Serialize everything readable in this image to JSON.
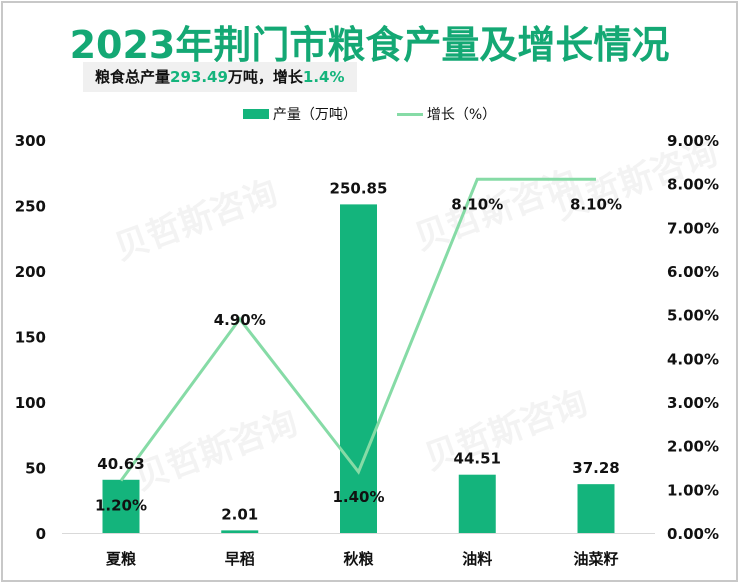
{
  "title": "2023年荆门市粮食产量及增长情况",
  "subtitle": {
    "prefix": "粮食总产量",
    "total": "293.49",
    "middle": "万吨，增长",
    "growth": "1.4%"
  },
  "legend": {
    "bar_label": "产量（万吨）",
    "line_label": "增长（%）"
  },
  "colors": {
    "bar": "#14b47c",
    "line": "#86dba6",
    "title": "#14a874",
    "highlight": "#14b47c"
  },
  "watermark": "贝哲斯咨询",
  "chart_data": {
    "type": "bar+line",
    "title": "2023年荆门市粮食产量及增长情况",
    "categories": [
      "夏粮",
      "早稻",
      "秋粮",
      "油料",
      "油菜籽"
    ],
    "series": [
      {
        "name": "产量（万吨）",
        "type": "bar",
        "axis": "left",
        "values": [
          40.63,
          2.01,
          250.85,
          44.51,
          37.28
        ],
        "labels": [
          "40.63",
          "2.01",
          "250.85",
          "44.51",
          "37.28"
        ]
      },
      {
        "name": "增长（%）",
        "type": "line",
        "axis": "right",
        "values": [
          1.2,
          4.9,
          1.4,
          8.1,
          8.1
        ],
        "labels": [
          "1.20%",
          "4.90%",
          "1.40%",
          "8.10%",
          "8.10%"
        ]
      }
    ],
    "left_axis": {
      "ylim": [
        0,
        300
      ],
      "ticks": [
        "0",
        "50",
        "100",
        "150",
        "200",
        "250",
        "300"
      ]
    },
    "right_axis": {
      "ylim": [
        0,
        9
      ],
      "ticks": [
        "0.00%",
        "1.00%",
        "2.00%",
        "3.00%",
        "4.00%",
        "5.00%",
        "6.00%",
        "7.00%",
        "8.00%",
        "9.00%"
      ]
    },
    "xlabel": "",
    "ylabel": "",
    "grid": false,
    "legend_position": "top"
  }
}
